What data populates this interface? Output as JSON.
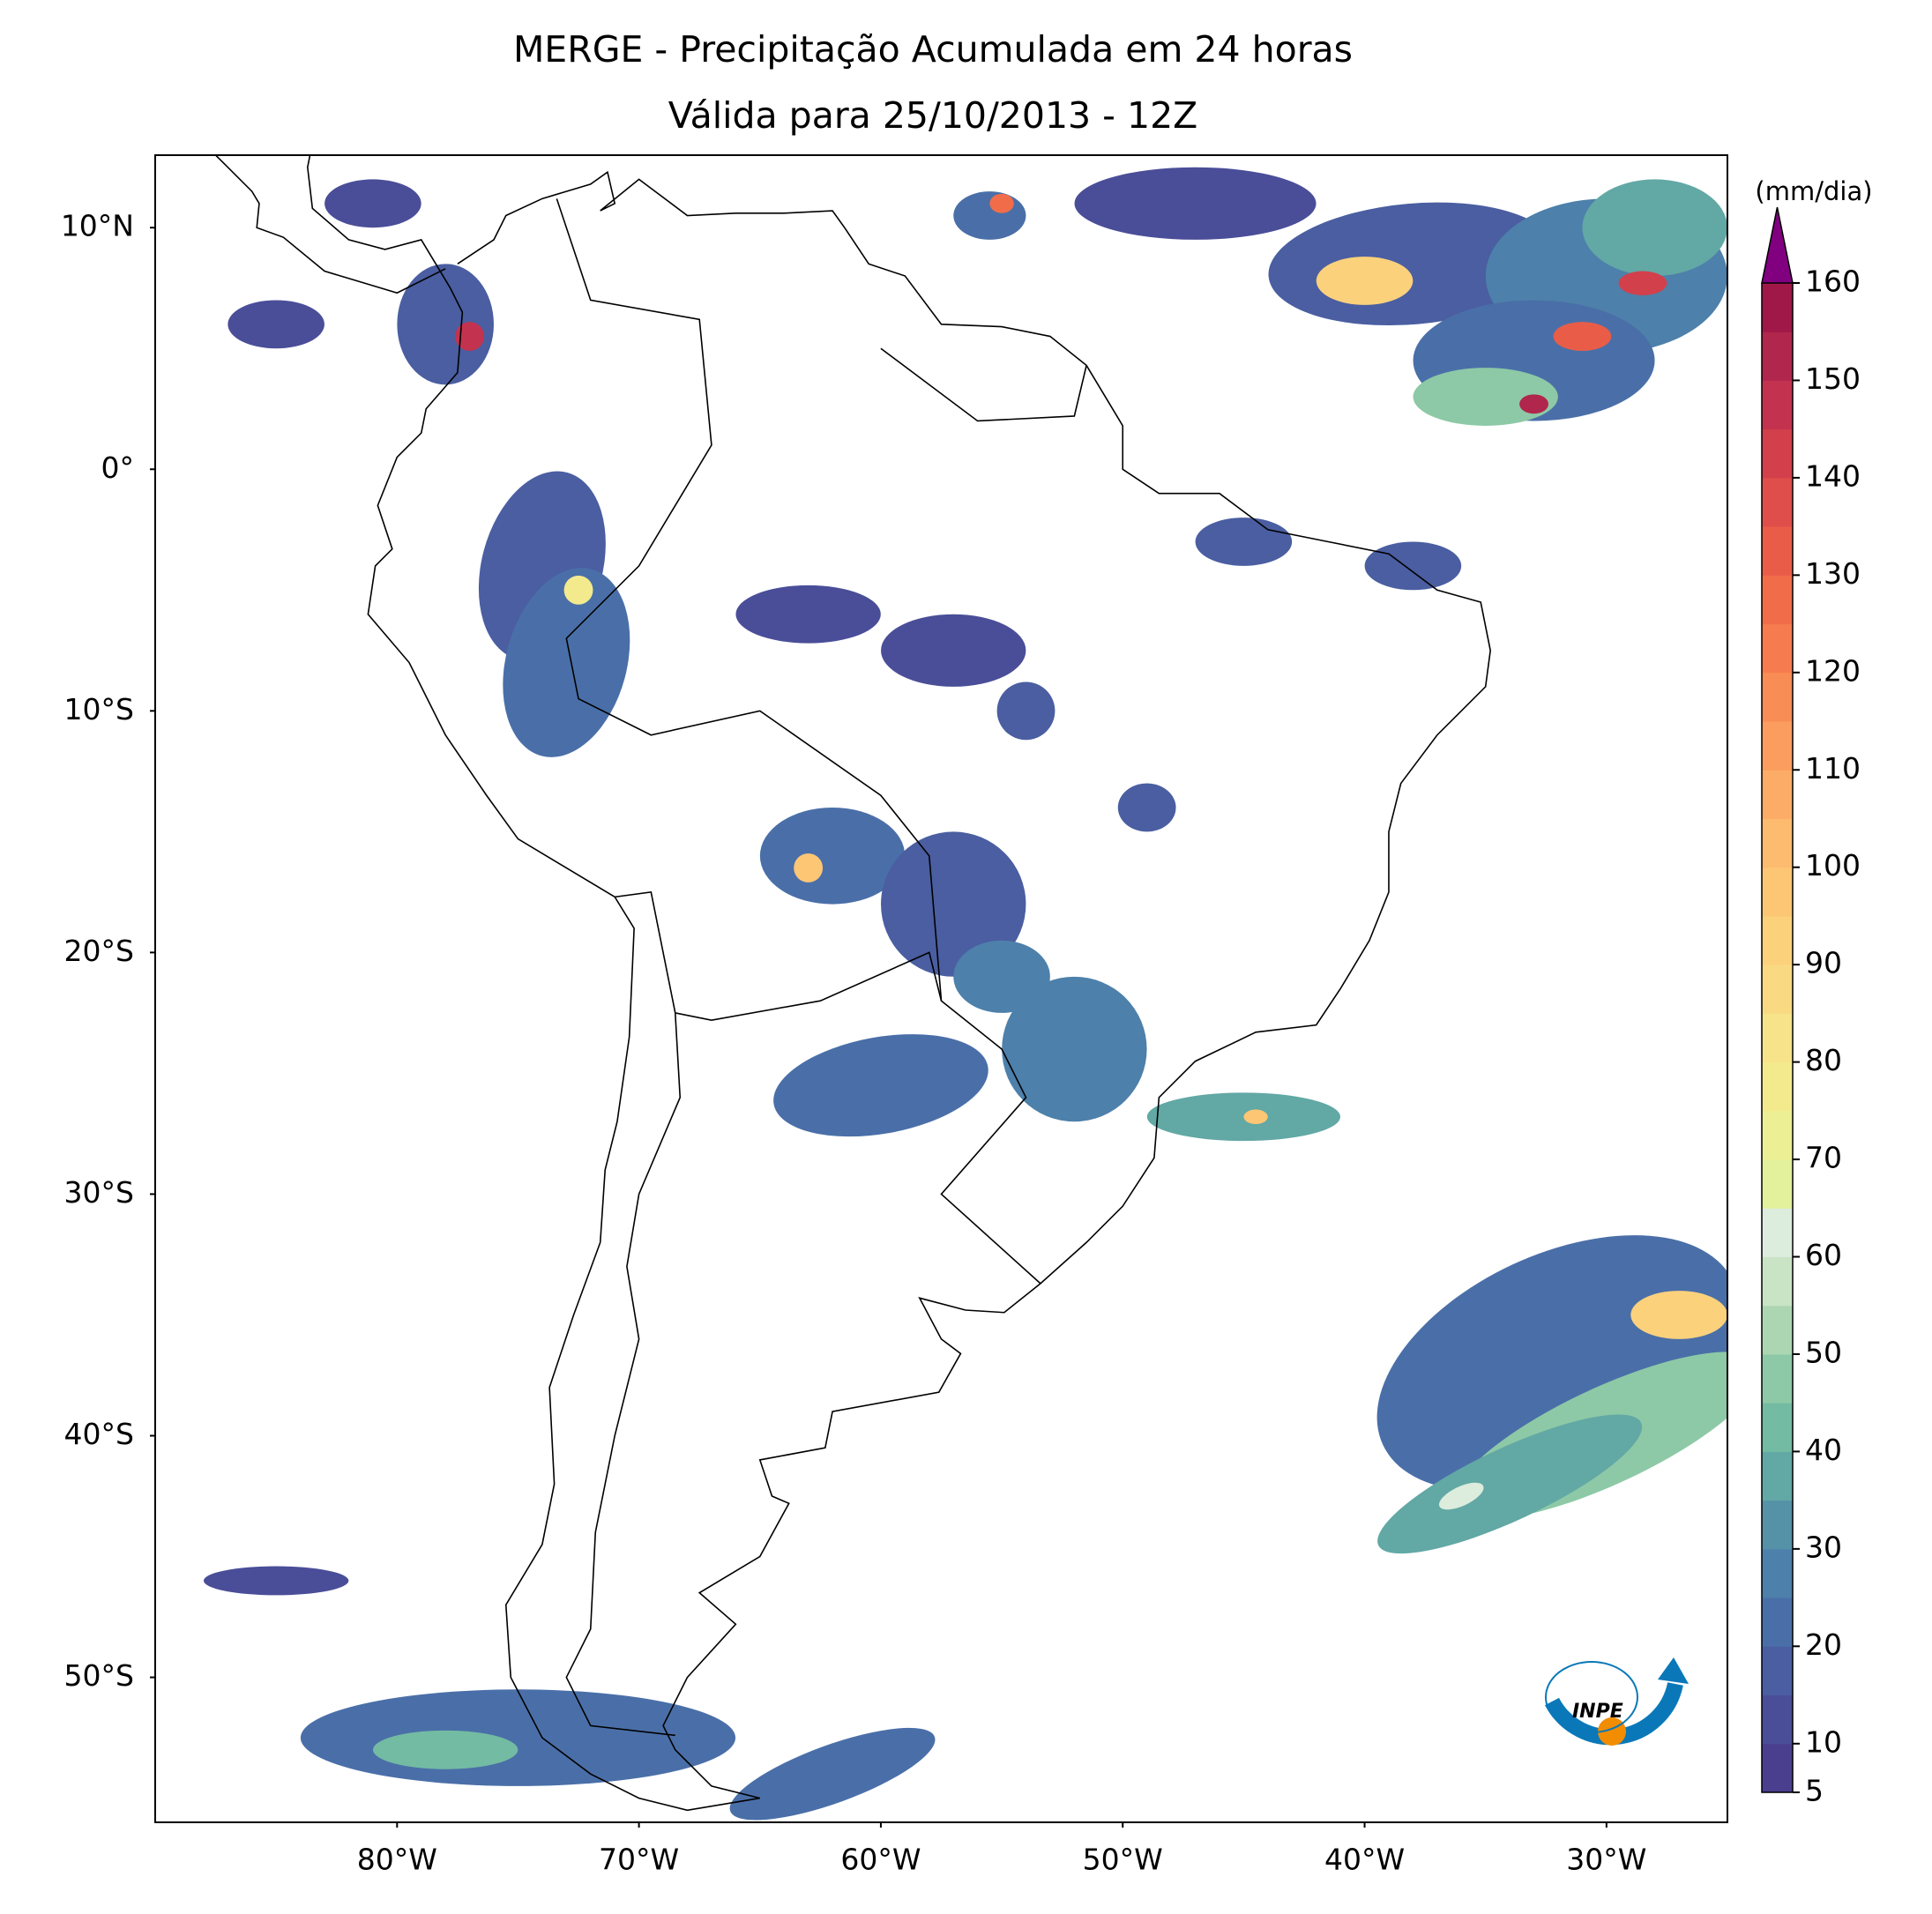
{
  "map": {
    "title": "MERGE - Precipitação Acumulada em 24 horas",
    "subtitle": "Válida para 25/10/2013 - 12Z",
    "lonlim": [
      -90,
      -25
    ],
    "latlim": [
      -56,
      13
    ],
    "lon_ticks": [
      {
        "value": -80,
        "label": "80°W"
      },
      {
        "value": -70,
        "label": "70°W"
      },
      {
        "value": -60,
        "label": "60°W"
      },
      {
        "value": -50,
        "label": "50°W"
      },
      {
        "value": -40,
        "label": "40°W"
      },
      {
        "value": -30,
        "label": "30°W"
      }
    ],
    "lat_ticks": [
      {
        "value": 10,
        "label": "10°N"
      },
      {
        "value": 0,
        "label": "0°"
      },
      {
        "value": -10,
        "label": "10°S"
      },
      {
        "value": -20,
        "label": "20°S"
      },
      {
        "value": -30,
        "label": "30°S"
      },
      {
        "value": -40,
        "label": "40°S"
      },
      {
        "value": -50,
        "label": "50°S"
      }
    ],
    "colorbar": {
      "label": "(mm/dia)",
      "range": [
        5,
        160
      ],
      "ticks": [
        5,
        10,
        20,
        30,
        40,
        50,
        60,
        70,
        80,
        90,
        100,
        110,
        120,
        130,
        140,
        150,
        160
      ],
      "colors": [
        "#4a3f8f",
        "#4a4e98",
        "#4a5ea1",
        "#4a6fa8",
        "#4d80aa",
        "#5592a8",
        "#62a8a5",
        "#73bba2",
        "#8dc9a6",
        "#acd6b2",
        "#c9e4c5",
        "#dcecdd",
        "#e3f09c",
        "#edef94",
        "#f3ea8e",
        "#f7e389",
        "#f9da83",
        "#fbd17c",
        "#fcc675",
        "#fcbb6e",
        "#fcac66",
        "#fb9d5e",
        "#f98d56",
        "#f67c4f",
        "#f16d4a",
        "#e95d48",
        "#df4e4a",
        "#d2404c",
        "#c3334f",
        "#b0264c",
        "#a01848"
      ],
      "extend_color": "#800080"
    },
    "logo": "INPE"
  }
}
